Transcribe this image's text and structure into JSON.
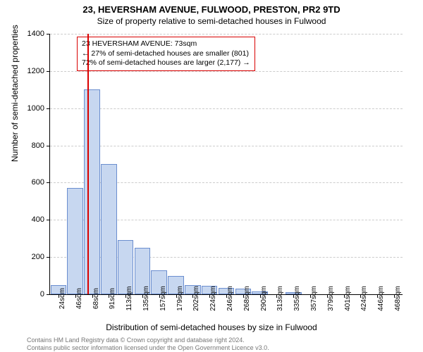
{
  "title_main": "23, HEVERSHAM AVENUE, FULWOOD, PRESTON, PR2 9TD",
  "title_sub": "Size of property relative to semi-detached houses in Fulwood",
  "y_axis_label": "Number of semi-detached properties",
  "x_axis_label": "Distribution of semi-detached houses by size in Fulwood",
  "attribution_line1": "Contains HM Land Registry data © Crown copyright and database right 2024.",
  "attribution_line2": "Contains public sector information licensed under the Open Government Licence v3.0.",
  "legend": {
    "line1": "23 HEVERSHAM AVENUE: 73sqm",
    "line2": "← 27% of semi-detached houses are smaller (801)",
    "line3": "72% of semi-detached houses are larger (2,177) →"
  },
  "chart": {
    "type": "histogram",
    "ylim": [
      0,
      1400
    ],
    "ytick_step": 200,
    "background_color": "#ffffff",
    "grid_color": "#cccccc",
    "bar_fill": "#c7d7f0",
    "bar_border": "#6b8ecf",
    "ref_line_color": "#d90000",
    "ref_value_sqm": 73,
    "x_start": 24,
    "x_bin_width": 22,
    "x_labels": [
      "24sqm",
      "46sqm",
      "68sqm",
      "91sqm",
      "113sqm",
      "135sqm",
      "157sqm",
      "179sqm",
      "202sqm",
      "224sqm",
      "246sqm",
      "268sqm",
      "290sqm",
      "313sqm",
      "335sqm",
      "357sqm",
      "379sqm",
      "401sqm",
      "424sqm",
      "446sqm",
      "468sqm"
    ],
    "values": [
      50,
      570,
      1100,
      700,
      290,
      250,
      130,
      100,
      50,
      45,
      35,
      30,
      15,
      0,
      10,
      0,
      0,
      0,
      0,
      0,
      0
    ]
  }
}
